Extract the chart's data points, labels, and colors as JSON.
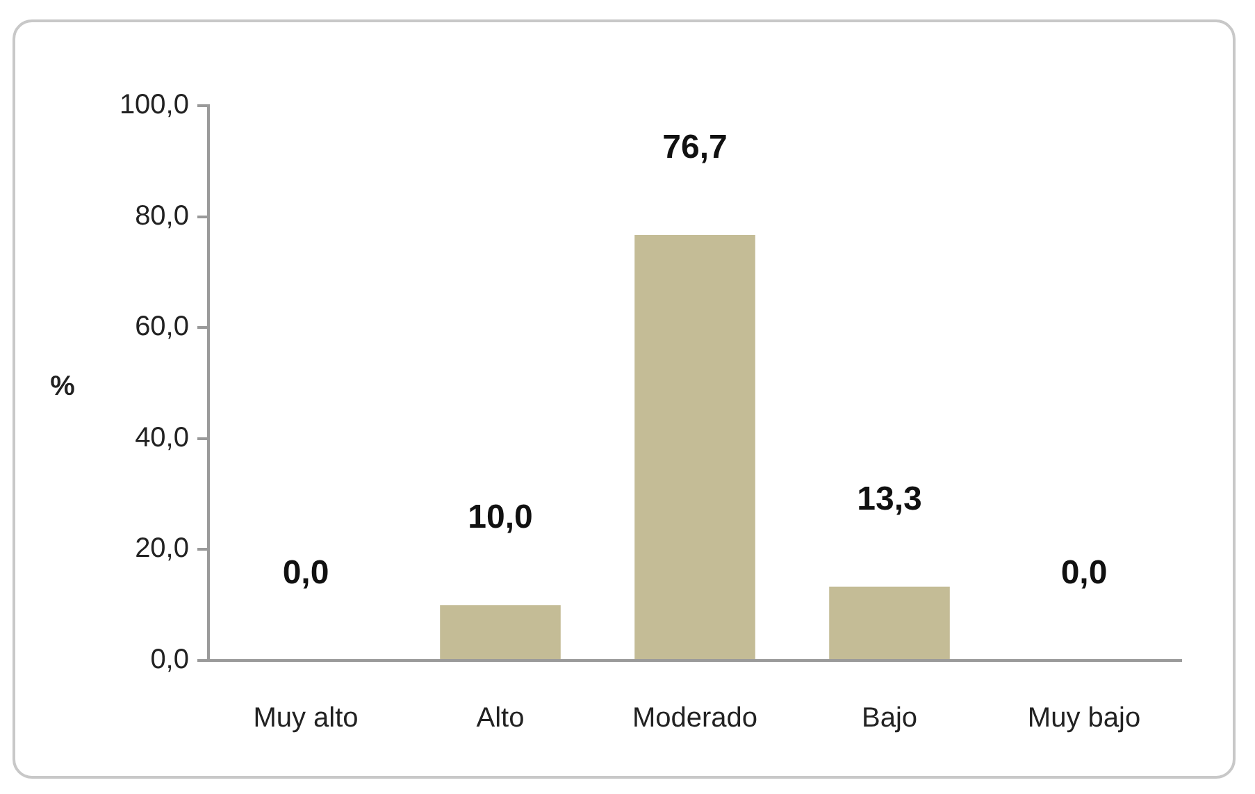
{
  "chart_data": {
    "type": "bar",
    "ylabel": "%",
    "categories": [
      "Muy alto",
      "Alto",
      "Moderado",
      "Bajo",
      "Muy bajo"
    ],
    "values": [
      0.0,
      10.0,
      76.7,
      13.3,
      0.0
    ],
    "value_labels": [
      "0,0",
      "10,0",
      "76,7",
      "13,3",
      "0,0"
    ],
    "color": "#c4bc96",
    "ylim": [
      0,
      100
    ],
    "yticks": [
      {
        "value": 0,
        "label": "0,0"
      },
      {
        "value": 20,
        "label": "20,0"
      },
      {
        "value": 40,
        "label": "40,0"
      },
      {
        "value": 60,
        "label": "60,0"
      },
      {
        "value": 80,
        "label": "80,0"
      },
      {
        "value": 100,
        "label": "100,0"
      }
    ]
  }
}
